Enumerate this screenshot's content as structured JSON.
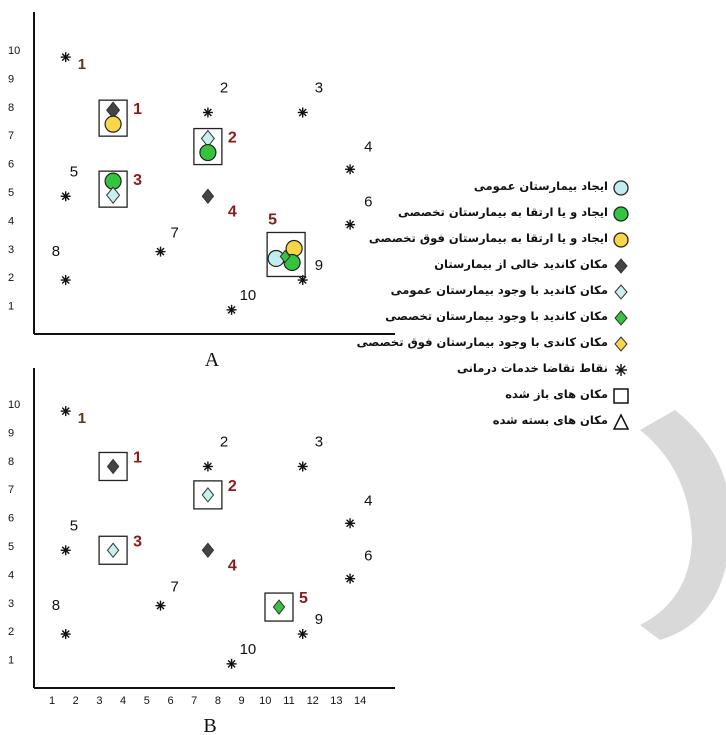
{
  "panels": [
    {
      "id": "A",
      "caption": "A",
      "point_labels": [
        {
          "label": "1",
          "x": 2,
          "y": 9.75
        },
        {
          "label": "2",
          "x": 8,
          "y": 7.8
        },
        {
          "label": "3",
          "x": 12,
          "y": 7.8
        },
        {
          "label": "4",
          "x": 14,
          "y": 5.8
        },
        {
          "label": "5",
          "x": 2,
          "y": 4.85
        },
        {
          "label": "6",
          "x": 14,
          "y": 3.85
        },
        {
          "label": "7",
          "x": 6,
          "y": 2.9
        },
        {
          "label": "8",
          "x": 2,
          "y": 1.9
        },
        {
          "label": "9",
          "x": 12,
          "y": 1.9
        },
        {
          "label": "10",
          "x": 9,
          "y": 0.85
        }
      ],
      "sites": [
        {
          "label": "1",
          "x": 4,
          "y": 7.6,
          "open": true,
          "symbols": [
            "hex-diamond-dark",
            "circle-yellow"
          ]
        },
        {
          "label": "2",
          "x": 8,
          "y": 6.6,
          "open": true,
          "symbols": [
            "diamond-light",
            "circle-green"
          ]
        },
        {
          "label": "3",
          "x": 4,
          "y": 5.1,
          "open": true,
          "symbols": [
            "circle-green",
            "diamond-light"
          ]
        },
        {
          "label": "4",
          "x": 8,
          "y": 4.85,
          "open": false,
          "symbols": [
            "diamond-dark"
          ]
        },
        {
          "label": "5",
          "x": 11.3,
          "y": 2.8,
          "open": true,
          "symbols": [
            "circle-cyan",
            "circle-yellow",
            "circle-green",
            "diamond-green"
          ]
        }
      ]
    },
    {
      "id": "B",
      "caption": "B",
      "point_labels": [
        {
          "label": "1",
          "x": 2,
          "y": 9.75
        },
        {
          "label": "2",
          "x": 8,
          "y": 7.8
        },
        {
          "label": "3",
          "x": 12,
          "y": 7.8
        },
        {
          "label": "4",
          "x": 14,
          "y": 5.8
        },
        {
          "label": "5",
          "x": 2,
          "y": 4.85
        },
        {
          "label": "6",
          "x": 14,
          "y": 3.85
        },
        {
          "label": "7",
          "x": 6,
          "y": 2.9
        },
        {
          "label": "8",
          "x": 2,
          "y": 1.9
        },
        {
          "label": "9",
          "x": 12,
          "y": 1.9
        },
        {
          "label": "10",
          "x": 9,
          "y": 0.85
        }
      ],
      "sites": [
        {
          "label": "1",
          "x": 4,
          "y": 7.8,
          "open": true,
          "symbols": [
            "diamond-dark"
          ]
        },
        {
          "label": "2",
          "x": 8,
          "y": 6.8,
          "open": true,
          "symbols": [
            "diamond-light"
          ]
        },
        {
          "label": "3",
          "x": 4,
          "y": 4.85,
          "open": true,
          "symbols": [
            "diamond-light"
          ]
        },
        {
          "label": "4",
          "x": 8,
          "y": 4.85,
          "open": false,
          "symbols": [
            "diamond-dark"
          ]
        },
        {
          "label": "5",
          "x": 11,
          "y": 2.85,
          "open": true,
          "symbols": [
            "diamond-green"
          ]
        }
      ]
    }
  ],
  "y_ticks": [
    "1",
    "2",
    "3",
    "4",
    "5",
    "6",
    "7",
    "8",
    "9",
    "10"
  ],
  "x_ticks": [
    "1",
    "2",
    "3",
    "4",
    "5",
    "6",
    "7",
    "8",
    "9",
    "10",
    "11",
    "12",
    "13",
    "14"
  ],
  "legend": [
    {
      "symbol": "circle-cyan",
      "text": "ایجاد بیمارستان عمومی"
    },
    {
      "symbol": "circle-green",
      "text": "ایجاد و یا ارتقا به بیمارستان تخصصی"
    },
    {
      "symbol": "circle-yellow",
      "text": "ایجاد و یا ارتقا به بیمارستان فوق تخصصی"
    },
    {
      "symbol": "diamond-dark",
      "text": "مکان کاندید خالی از بیمارستان"
    },
    {
      "symbol": "diamond-light",
      "text": "مکان کاندید با وجود بیمارستان عمومی"
    },
    {
      "symbol": "diamond-green",
      "text": "مکان کاندید با وجود بیمارستان تخصصی"
    },
    {
      "symbol": "diamond-yellow",
      "text": "مکان کاندی با وجود بیمارستان فوق تخصصی"
    },
    {
      "symbol": "asterisk",
      "text": "نقاط تقاضا خدمات درمانی"
    },
    {
      "symbol": "square",
      "text": "مکان های باز شده"
    },
    {
      "symbol": "triangle",
      "text": "مکان های بسته شده"
    }
  ],
  "colors": {
    "site_label": "#8b1a1a",
    "cyan": "#bfeef0",
    "green": "#36c43e",
    "yellow": "#f7d64a",
    "dark": "#444444",
    "light": "#c8f0ee",
    "watermark": "#d9d9d9"
  }
}
